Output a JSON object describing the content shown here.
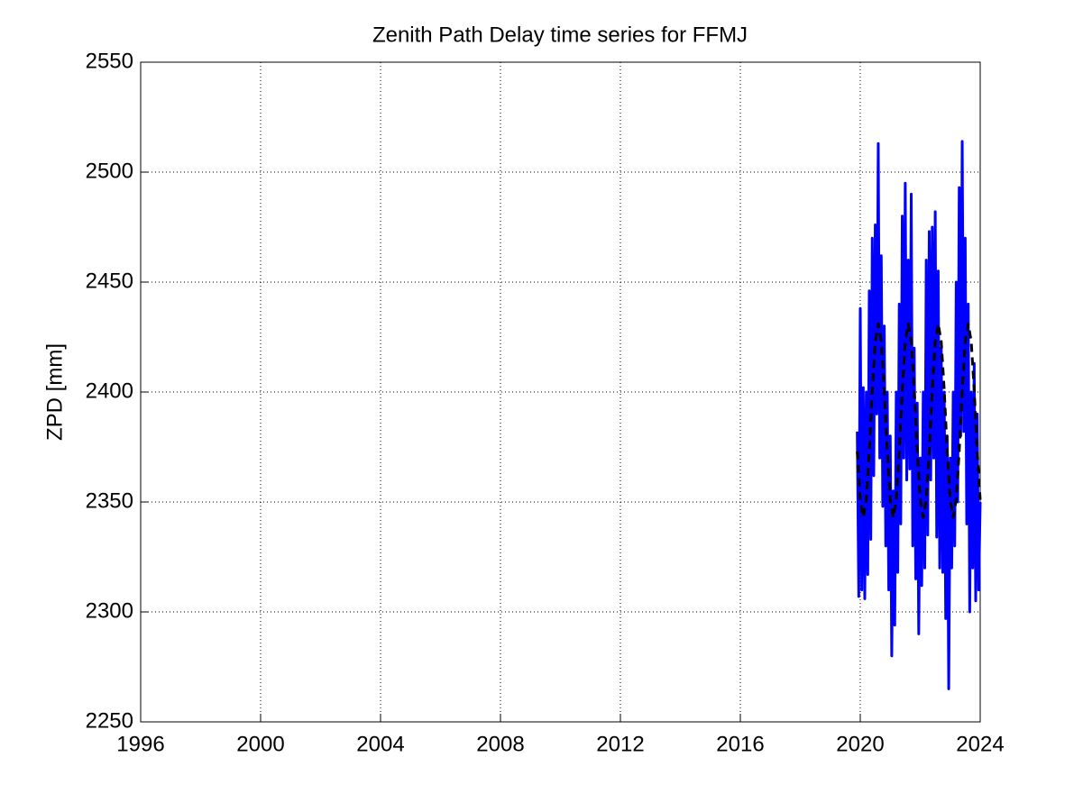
{
  "chart_data": {
    "type": "line",
    "title": "Zenith Path Delay time series for FFMJ",
    "y_label": "ZPD [mm]",
    "xlim": [
      1996,
      2024
    ],
    "xticks": [
      1996,
      2000,
      2004,
      2008,
      2012,
      2016,
      2020,
      2024
    ],
    "ylim": [
      2250,
      2550
    ],
    "yticks": [
      2250,
      2300,
      2350,
      2400,
      2450,
      2500,
      2550
    ],
    "grid": true,
    "series": [
      {
        "color": "#0000ff",
        "style": "solid",
        "x": [
          2019.9,
          2019.95,
          2020,
          2020.05,
          2020.1,
          2020.15,
          2020.2,
          2020.25,
          2020.3,
          2020.35,
          2020.4,
          2020.45,
          2020.5,
          2020.55,
          2020.6,
          2020.65,
          2020.7,
          2020.75,
          2020.8,
          2020.85,
          2020.9,
          2020.95,
          2021,
          2021.05,
          2021.1,
          2021.15,
          2021.2,
          2021.25,
          2021.3,
          2021.35,
          2021.4,
          2021.45,
          2021.5,
          2021.55,
          2021.6,
          2021.65,
          2021.7,
          2021.75,
          2021.8,
          2021.85,
          2021.9,
          2021.95,
          2022,
          2022.05,
          2022.1,
          2022.15,
          2022.2,
          2022.25,
          2022.3,
          2022.35,
          2022.4,
          2022.45,
          2022.5,
          2022.55,
          2022.6,
          2022.65,
          2022.7,
          2022.75,
          2022.8,
          2022.85,
          2022.9,
          2022.95,
          2023,
          2023.05,
          2023.1,
          2023.15,
          2023.2,
          2023.25,
          2023.3,
          2023.35,
          2023.4,
          2023.45,
          2023.5,
          2023.55,
          2023.6,
          2023.65,
          2023.7,
          2023.75,
          2023.8,
          2023.85,
          2023.9,
          2023.95,
          2024
        ],
        "values": [
          2382,
          2307,
          2438,
          2310,
          2402,
          2306,
          2400,
          2317,
          2446,
          2333,
          2470,
          2362,
          2476,
          2390,
          2513,
          2370,
          2462,
          2348,
          2430,
          2330,
          2400,
          2310,
          2380,
          2280,
          2355,
          2294,
          2400,
          2318,
          2440,
          2340,
          2480,
          2370,
          2495,
          2360,
          2460,
          2365,
          2490,
          2330,
          2420,
          2315,
          2395,
          2290,
          2370,
          2312,
          2400,
          2320,
          2460,
          2335,
          2473,
          2360,
          2475,
          2370,
          2482,
          2334,
          2455,
          2320,
          2420,
          2318,
          2400,
          2297,
          2380,
          2265,
          2370,
          2320,
          2400,
          2330,
          2450,
          2350,
          2493,
          2380,
          2514,
          2382,
          2470,
          2340,
          2440,
          2300,
          2400,
          2320,
          2413,
          2305,
          2390,
          2310,
          2350
        ]
      },
      {
        "color": "#000000",
        "style": "dashed",
        "x": [
          2019.9,
          2020,
          2020.1,
          2020.2,
          2020.3,
          2020.4,
          2020.5,
          2020.6,
          2020.7,
          2020.8,
          2020.9,
          2021,
          2021.1,
          2021.2,
          2021.3,
          2021.4,
          2021.5,
          2021.6,
          2021.7,
          2021.8,
          2021.9,
          2022,
          2022.1,
          2022.2,
          2022.3,
          2022.4,
          2022.5,
          2022.6,
          2022.7,
          2022.8,
          2022.9,
          2023,
          2023.1,
          2023.2,
          2023.3,
          2023.4,
          2023.5,
          2023.6,
          2023.7,
          2023.8,
          2023.9,
          2024
        ],
        "values": [
          2373,
          2351,
          2343,
          2351,
          2373,
          2401,
          2423,
          2431,
          2423,
          2401,
          2373,
          2351,
          2343,
          2351,
          2373,
          2401,
          2423,
          2431,
          2423,
          2401,
          2373,
          2351,
          2343,
          2351,
          2373,
          2401,
          2423,
          2431,
          2423,
          2401,
          2373,
          2351,
          2343,
          2351,
          2373,
          2401,
          2423,
          2431,
          2423,
          2401,
          2373,
          2351
        ]
      }
    ]
  }
}
